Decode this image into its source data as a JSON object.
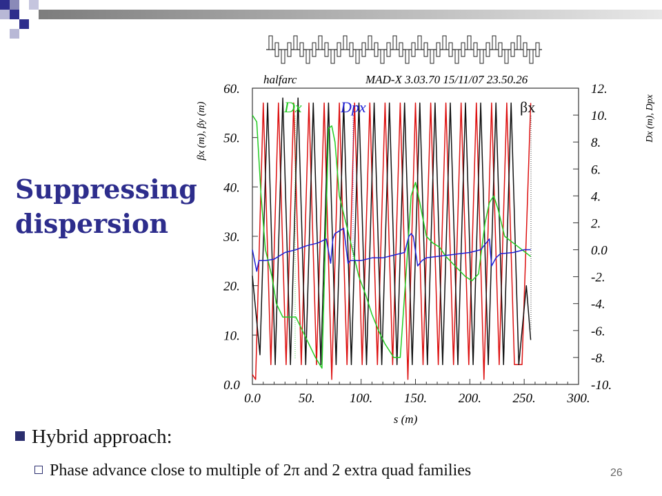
{
  "slide": {
    "title": "Suppressing dispersion",
    "bullet_main": "Hybrid approach:",
    "bullet_sub": "Phase advance close to multiple of 2π and 2 extra quad families",
    "page_number": "26",
    "theme_colors": {
      "navy": "#2d2d8c",
      "bar_gray": "#8f8f8f"
    }
  },
  "chart_data": {
    "type": "line",
    "title_left": "halfarc",
    "title_right": "MAD-X 3.03.70  15/11/07 23.50.26",
    "xlabel": "s (m)",
    "ylabel_left": "βx (m),  βy (m)",
    "ylabel_right": "Dx (m),  Dpx",
    "xlim": [
      0,
      300
    ],
    "ylim_left": [
      0,
      60
    ],
    "ylim_right": [
      -10,
      12
    ],
    "x_ticks": [
      "0.0",
      "50.",
      "100.",
      "150.",
      "200.",
      "250.",
      "300."
    ],
    "y_left_ticks": [
      "0.0",
      "10.",
      "20.",
      "30.",
      "40.",
      "50.",
      "60."
    ],
    "y_right_ticks": [
      "-10.",
      "-8.",
      "-6.",
      "-4.",
      "-2.",
      "0.0",
      "2.",
      "4.",
      "6.",
      "8.",
      "10.",
      "12."
    ],
    "legend": {
      "placement": "top",
      "labels": [
        "Dx",
        "Dpx",
        "βx"
      ],
      "colors": [
        "#22cc22",
        "#1f1fd6",
        "#111111"
      ]
    },
    "series": [
      {
        "name": "βx",
        "color": "#111111",
        "axis": "left",
        "x": [
          0,
          7,
          14,
          21,
          28,
          35,
          42,
          49,
          56,
          63,
          70,
          77,
          84,
          91,
          98,
          105,
          112,
          119,
          126,
          133,
          140,
          147,
          154,
          161,
          168,
          175,
          182,
          189,
          196,
          203,
          210,
          217,
          224,
          231,
          238,
          245,
          252,
          256
        ],
        "y": [
          22,
          6,
          57,
          4,
          58,
          4,
          58,
          4,
          57,
          4,
          57,
          4,
          57,
          4,
          57,
          4,
          57,
          4,
          57,
          4,
          57,
          4,
          57,
          4,
          57,
          4,
          57,
          4,
          57,
          4,
          57,
          4,
          57,
          4,
          57,
          4,
          20,
          9
        ]
      },
      {
        "name": "βy",
        "color": "#dd1111",
        "axis": "left",
        "x": [
          0,
          3,
          10,
          17,
          24,
          31,
          38,
          45,
          52,
          59,
          66,
          73,
          80,
          87,
          94,
          101,
          108,
          115,
          122,
          129,
          136,
          143,
          150,
          157,
          164,
          171,
          178,
          185,
          192,
          199,
          206,
          213,
          220,
          227,
          234,
          241,
          248,
          256
        ],
        "y": [
          2,
          1,
          57,
          4,
          57,
          4,
          57,
          4,
          57,
          4,
          57,
          1,
          57,
          4,
          57,
          4,
          57,
          4,
          57,
          4,
          57,
          1,
          57,
          4,
          57,
          4,
          57,
          4,
          57,
          4,
          57,
          1,
          57,
          4,
          57,
          4,
          4,
          57
        ]
      },
      {
        "name": "Dx",
        "color": "#22cc22",
        "axis": "right",
        "x": [
          0,
          4,
          8,
          12,
          18,
          22,
          28,
          34,
          40,
          46,
          52,
          58,
          64,
          70,
          73,
          76,
          80,
          86,
          92,
          98,
          104,
          110,
          116,
          122,
          130,
          136,
          142,
          146,
          150,
          154,
          160,
          166,
          172,
          178,
          184,
          190,
          196,
          202,
          208,
          214,
          218,
          222,
          226,
          232,
          240,
          248,
          256
        ],
        "y": [
          10,
          9.5,
          4,
          0,
          -2,
          -4,
          -5,
          -5,
          -5,
          -6,
          -7,
          -8,
          -8.8,
          9,
          9.2,
          8,
          4,
          2,
          0,
          -2,
          -3.3,
          -4.8,
          -6,
          -7,
          -8,
          -8,
          -1,
          4,
          5,
          3.5,
          1,
          0.5,
          0.2,
          -0.5,
          -1,
          -1.5,
          -2,
          -2.3,
          -1.8,
          2,
          3.5,
          4,
          3,
          1,
          0.5,
          0,
          -0.5
        ]
      },
      {
        "name": "Dpx",
        "color": "#1f1fd6",
        "axis": "right",
        "x": [
          0,
          4,
          6,
          12,
          20,
          30,
          40,
          50,
          60,
          68,
          72,
          74,
          76,
          80,
          84,
          88,
          90,
          100,
          110,
          120,
          130,
          140,
          144,
          146,
          148,
          152,
          156,
          160,
          170,
          180,
          190,
          200,
          210,
          216,
          218,
          220,
          224,
          228,
          240,
          250,
          256
        ],
        "y": [
          0,
          -1.6,
          -0.8,
          -0.8,
          -0.7,
          -0.2,
          0,
          0.3,
          0.5,
          0.8,
          -1,
          0.8,
          1.2,
          1.4,
          1.6,
          -1,
          -0.8,
          -0.8,
          -0.6,
          -0.6,
          -0.4,
          -0.2,
          1,
          1.2,
          1,
          -1.2,
          -0.8,
          -0.6,
          -0.5,
          -0.4,
          -0.3,
          -0.2,
          0,
          0.6,
          0.8,
          -1.2,
          -0.6,
          -0.3,
          -0.2,
          0,
          0
        ]
      }
    ]
  }
}
